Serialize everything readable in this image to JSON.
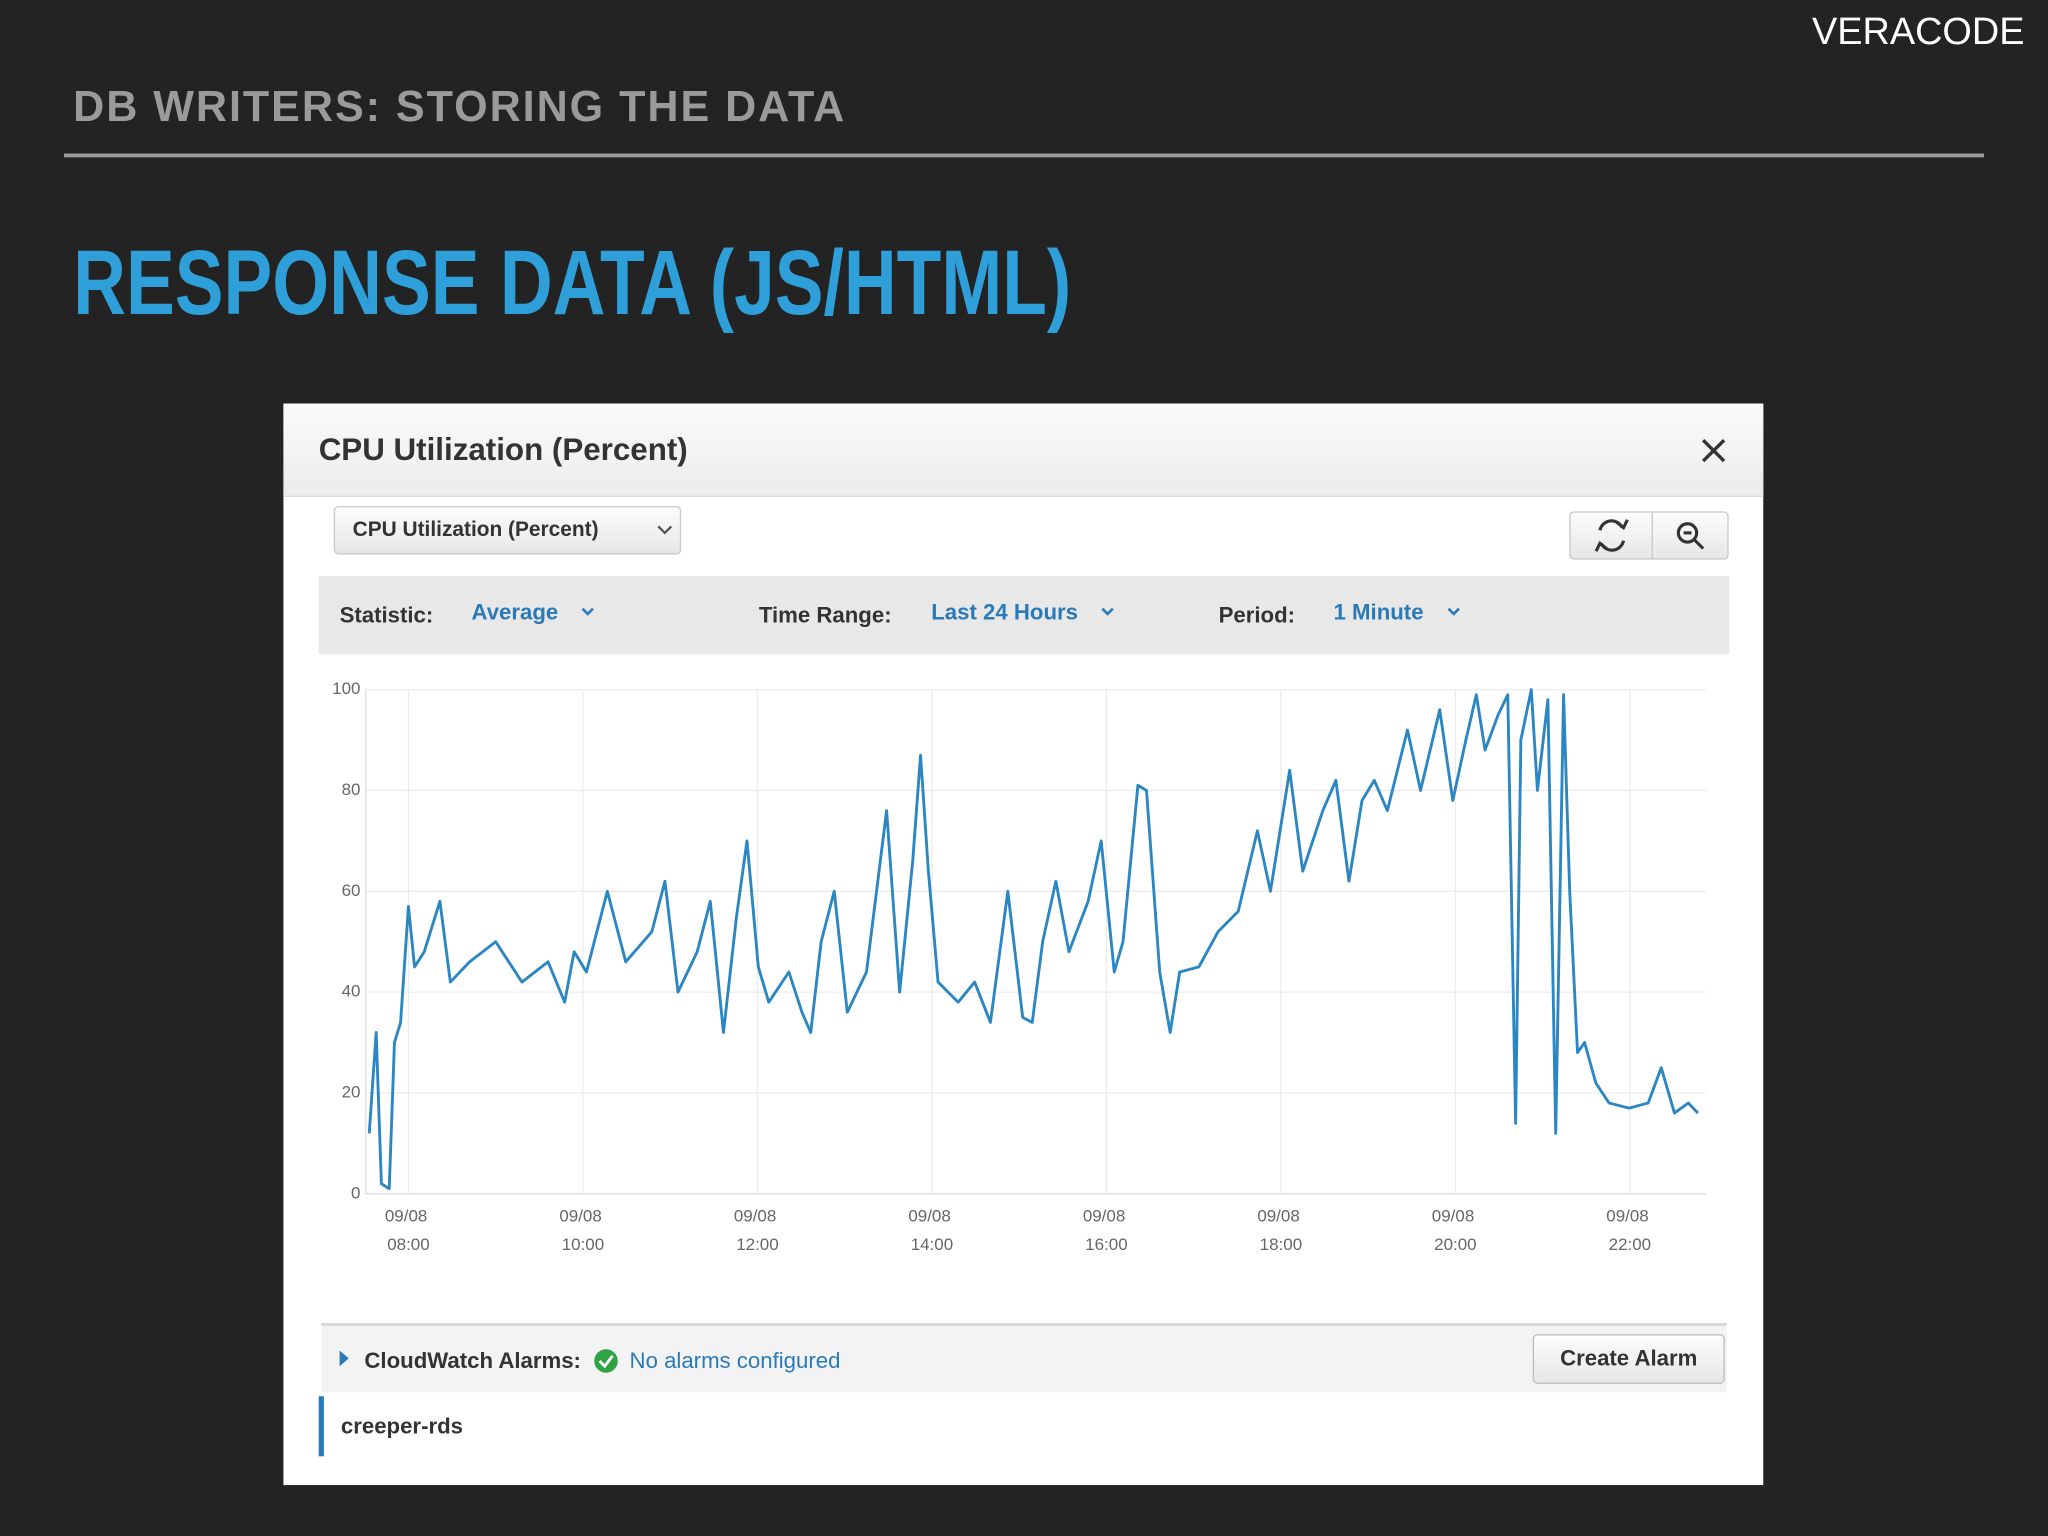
{
  "header": {
    "brand": "VERACODE",
    "section": "DB WRITERS: STORING THE DATA",
    "title": "RESPONSE DATA (JS/HTML)"
  },
  "panel": {
    "title": "CPU Utilization (Percent)",
    "metric_select": "CPU Utilization (Percent)",
    "statistic_label": "Statistic:",
    "statistic": "Average",
    "time_range_label": "Time Range:",
    "time_range": "Last 24 Hours",
    "period_label": "Period:",
    "period": "1 Minute",
    "alarms_label": "CloudWatch Alarms:",
    "alarms_status": "No alarms configured",
    "create_alarm": "Create Alarm",
    "instance": "creeper-rds"
  },
  "chart_data": {
    "type": "line",
    "color": "#2b86c2",
    "grid": true,
    "x": [
      7.55,
      7.63,
      7.69,
      7.78,
      7.84,
      7.91,
      8.0,
      8.07,
      8.18,
      8.36,
      8.48,
      8.7,
      9.0,
      9.3,
      9.6,
      9.79,
      9.9,
      10.04,
      10.28,
      10.49,
      10.79,
      10.94,
      11.09,
      11.31,
      11.46,
      11.61,
      11.76,
      11.88,
      12.01,
      12.13,
      12.36,
      12.51,
      12.61,
      12.73,
      12.88,
      13.03,
      13.25,
      13.48,
      13.63,
      13.78,
      13.87,
      13.96,
      14.07,
      14.3,
      14.49,
      14.67,
      14.87,
      15.04,
      15.15,
      15.27,
      15.42,
      15.57,
      15.79,
      15.94,
      16.09,
      16.19,
      16.36,
      16.46,
      16.61,
      16.73,
      16.84,
      17.06,
      17.28,
      17.51,
      17.73,
      17.88,
      18.1,
      18.25,
      18.48,
      18.63,
      18.78,
      18.93,
      19.07,
      19.22,
      19.45,
      19.6,
      19.82,
      19.97,
      20.12,
      20.24,
      20.34,
      20.49,
      20.6,
      20.69,
      20.75,
      20.87,
      20.94,
      21.06,
      21.15,
      21.24,
      21.31,
      21.4,
      21.48,
      21.61,
      21.76,
      21.99,
      22.21,
      22.36,
      22.51,
      22.67,
      22.78
    ],
    "values": [
      12,
      32,
      2,
      1,
      30,
      34,
      57,
      45,
      48,
      58,
      42,
      46,
      50,
      42,
      46,
      38,
      48,
      44,
      60,
      46,
      52,
      62,
      40,
      48,
      58,
      32,
      55,
      70,
      45,
      38,
      44,
      36,
      32,
      50,
      60,
      36,
      44,
      76,
      40,
      66,
      87,
      64,
      42,
      38,
      42,
      34,
      60,
      35,
      34,
      50,
      62,
      48,
      58,
      70,
      44,
      50,
      81,
      80,
      44,
      32,
      44,
      45,
      52,
      56,
      72,
      60,
      84,
      64,
      76,
      82,
      62,
      78,
      82,
      76,
      92,
      80,
      96,
      78,
      90,
      99,
      88,
      95,
      99,
      14,
      90,
      100,
      80,
      98,
      12,
      99,
      60,
      28,
      30,
      22,
      18,
      17,
      18,
      25,
      16,
      18,
      16
    ],
    "xlim": [
      7.51,
      22.87
    ],
    "ylim": [
      0,
      100
    ],
    "yticks": [
      0,
      20,
      40,
      60,
      80,
      100
    ],
    "xticks": [
      {
        "value": 8,
        "label": "09/08 08:00"
      },
      {
        "value": 10,
        "label": "09/08 10:00"
      },
      {
        "value": 12,
        "label": "09/08 12:00"
      },
      {
        "value": 14,
        "label": "09/08 14:00"
      },
      {
        "value": 16,
        "label": "09/08 16:00"
      },
      {
        "value": 18,
        "label": "09/08 18:00"
      },
      {
        "value": 20,
        "label": "09/08 20:00"
      },
      {
        "value": 22,
        "label": "09/08 22:00"
      }
    ]
  }
}
